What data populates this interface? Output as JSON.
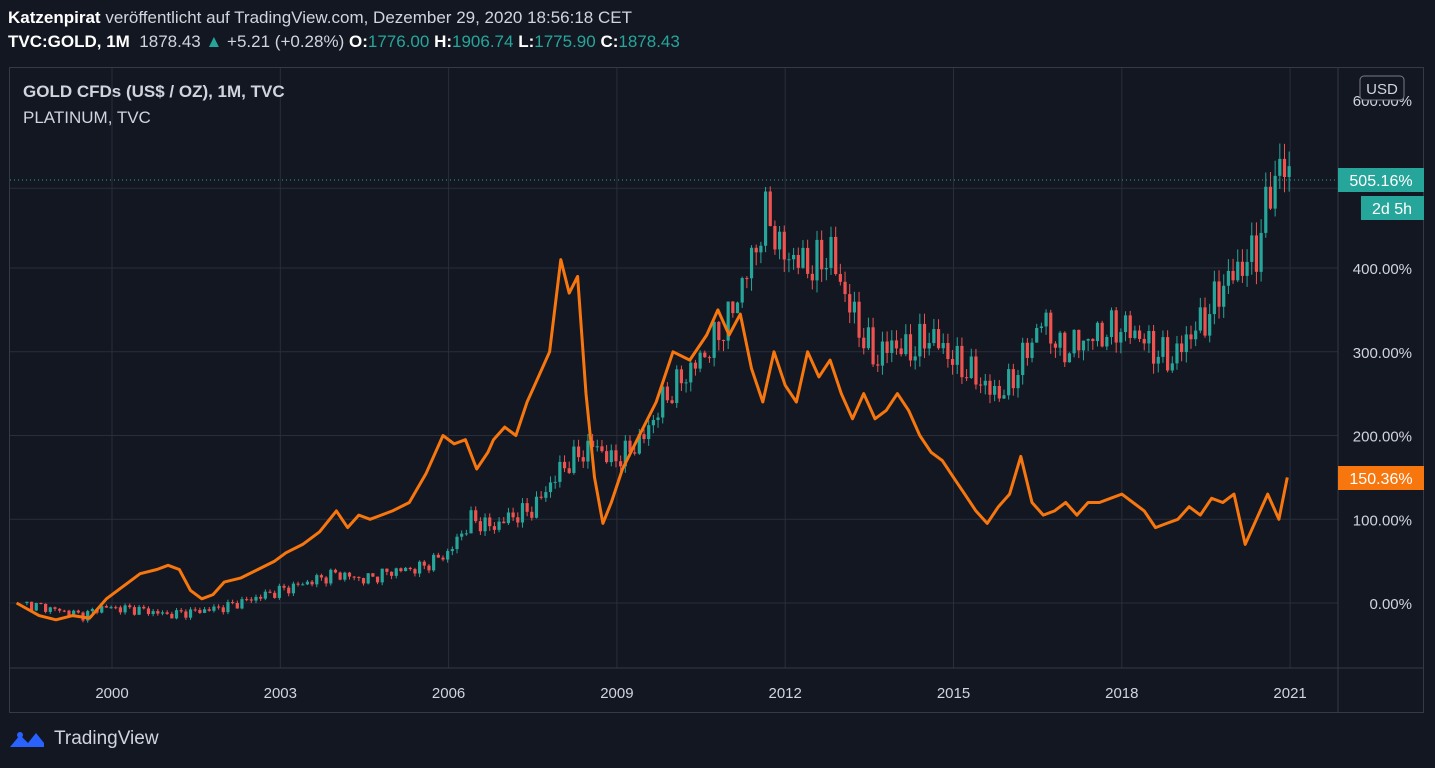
{
  "header": {
    "author": "Katzenpirat",
    "published_text": "veröffentlicht auf TradingView.com, Dezember 29, 2020 18:56:18 CET",
    "symbol": "TVC:GOLD, 1M",
    "last": "1878.43",
    "change": "+5.21 (+0.28%)",
    "o_label": "O:",
    "o_value": "1776.00",
    "h_label": "H:",
    "h_value": "1906.74",
    "l_label": "L:",
    "l_value": "1775.90",
    "c_label": "C:",
    "c_value": "1878.43"
  },
  "legend": {
    "main": "GOLD CFDs (US$ / OZ), 1M, TVC",
    "compare": "PLATINUM, TVC"
  },
  "currency_button": "USD",
  "badges": {
    "gold_value": "505.16%",
    "countdown": "2d 5h",
    "platinum_value": "150.36%"
  },
  "footer": {
    "brand": "TradingView"
  },
  "colors": {
    "background": "#131722",
    "grid": "#2a2e39",
    "up": "#26a69a",
    "down": "#ef5350",
    "platinum": "#f7760e"
  },
  "chart_data": {
    "type": "line",
    "title": "GOLD CFDs (US$ / OZ), 1M, TVC",
    "y_unit": "%",
    "ylim": [
      -80,
      620
    ],
    "y_ticks": [
      0,
      100,
      200,
      300,
      400
    ],
    "y_tick_labels": [
      "0.00%",
      "100.00%",
      "200.00%",
      "300.00%",
      "400.00%"
    ],
    "y_top_label": "600.00%",
    "xlim": [
      1998.2,
      2021.4
    ],
    "x_ticks": [
      2000,
      2003,
      2006,
      2009,
      2012,
      2015,
      2018,
      2021
    ],
    "x_tick_labels": [
      "2000",
      "2003",
      "2006",
      "2009",
      "2012",
      "2015",
      "2018",
      "2021"
    ],
    "series": [
      {
        "name": "GOLD (candles, % change)",
        "style": "candlestick",
        "x": [
          1998.4,
          1999.0,
          1999.5,
          1999.8,
          2000.5,
          2001.0,
          2001.5,
          2002.0,
          2002.5,
          2003.0,
          2003.5,
          2004.0,
          2004.5,
          2005.0,
          2005.5,
          2006.0,
          2006.4,
          2006.8,
          2007.0,
          2007.5,
          2008.0,
          2008.3,
          2008.6,
          2008.9,
          2009.2,
          2009.5,
          2009.8,
          2010.2,
          2010.6,
          2011.0,
          2011.4,
          2011.7,
          2011.9,
          2012.2,
          2012.5,
          2012.8,
          2013.0,
          2013.3,
          2013.6,
          2013.9,
          2014.2,
          2014.6,
          2015.0,
          2015.4,
          2015.7,
          2015.95,
          2016.3,
          2016.6,
          2016.9,
          2017.2,
          2017.6,
          2018.0,
          2018.3,
          2018.6,
          2018.9,
          2019.2,
          2019.5,
          2019.8,
          2020.1,
          2020.4,
          2020.6,
          2020.8,
          2021.0
        ],
        "values": [
          0,
          -8,
          -15,
          -5,
          -8,
          -14,
          -10,
          -5,
          5,
          15,
          25,
          35,
          28,
          38,
          42,
          60,
          100,
          90,
          100,
          112,
          160,
          175,
          190,
          170,
          180,
          200,
          240,
          270,
          300,
          340,
          410,
          470,
          420,
          410,
          400,
          420,
          380,
          330,
          290,
          310,
          300,
          320,
          290,
          270,
          250,
          255,
          300,
          340,
          300,
          310,
          320,
          330,
          320,
          300,
          290,
          320,
          340,
          380,
          400,
          420,
          480,
          525,
          505
        ]
      },
      {
        "name": "PLATINUM",
        "style": "line",
        "x": [
          1998.3,
          1998.7,
          1999.0,
          1999.3,
          1999.6,
          1999.9,
          2000.2,
          2000.5,
          2000.8,
          2001.0,
          2001.2,
          2001.4,
          2001.6,
          2001.8,
          2002.0,
          2002.3,
          2002.6,
          2002.9,
          2003.1,
          2003.4,
          2003.7,
          2004.0,
          2004.2,
          2004.4,
          2004.6,
          2004.8,
          2005.0,
          2005.3,
          2005.6,
          2005.9,
          2006.1,
          2006.3,
          2006.5,
          2006.7,
          2006.8,
          2007.0,
          2007.2,
          2007.4,
          2007.6,
          2007.8,
          2008.0,
          2008.15,
          2008.3,
          2008.45,
          2008.6,
          2008.75,
          2008.9,
          2009.1,
          2009.4,
          2009.7,
          2010.0,
          2010.3,
          2010.6,
          2010.8,
          2011.0,
          2011.2,
          2011.4,
          2011.6,
          2011.8,
          2012.0,
          2012.2,
          2012.4,
          2012.6,
          2012.8,
          2013.0,
          2013.2,
          2013.4,
          2013.6,
          2013.8,
          2014.0,
          2014.2,
          2014.4,
          2014.6,
          2014.8,
          2015.0,
          2015.2,
          2015.4,
          2015.6,
          2015.8,
          2016.0,
          2016.2,
          2016.4,
          2016.6,
          2016.8,
          2017.0,
          2017.2,
          2017.4,
          2017.6,
          2017.8,
          2018.0,
          2018.2,
          2018.4,
          2018.6,
          2018.8,
          2019.0,
          2019.2,
          2019.4,
          2019.6,
          2019.8,
          2020.0,
          2020.2,
          2020.4,
          2020.6,
          2020.8,
          2020.95
        ],
        "values": [
          0,
          -15,
          -20,
          -15,
          -18,
          5,
          20,
          35,
          40,
          45,
          40,
          15,
          5,
          10,
          25,
          30,
          40,
          50,
          60,
          70,
          85,
          110,
          90,
          105,
          100,
          105,
          110,
          120,
          155,
          200,
          190,
          195,
          160,
          180,
          195,
          210,
          200,
          240,
          270,
          300,
          410,
          370,
          390,
          250,
          150,
          95,
          120,
          160,
          200,
          240,
          300,
          290,
          320,
          350,
          320,
          345,
          280,
          240,
          300,
          260,
          240,
          300,
          270,
          290,
          250,
          220,
          250,
          220,
          230,
          250,
          230,
          200,
          180,
          170,
          150,
          130,
          110,
          95,
          115,
          130,
          175,
          120,
          105,
          110,
          120,
          105,
          120,
          120,
          125,
          130,
          120,
          110,
          90,
          95,
          100,
          115,
          105,
          125,
          120,
          130,
          70,
          100,
          130,
          100,
          150
        ]
      }
    ]
  }
}
